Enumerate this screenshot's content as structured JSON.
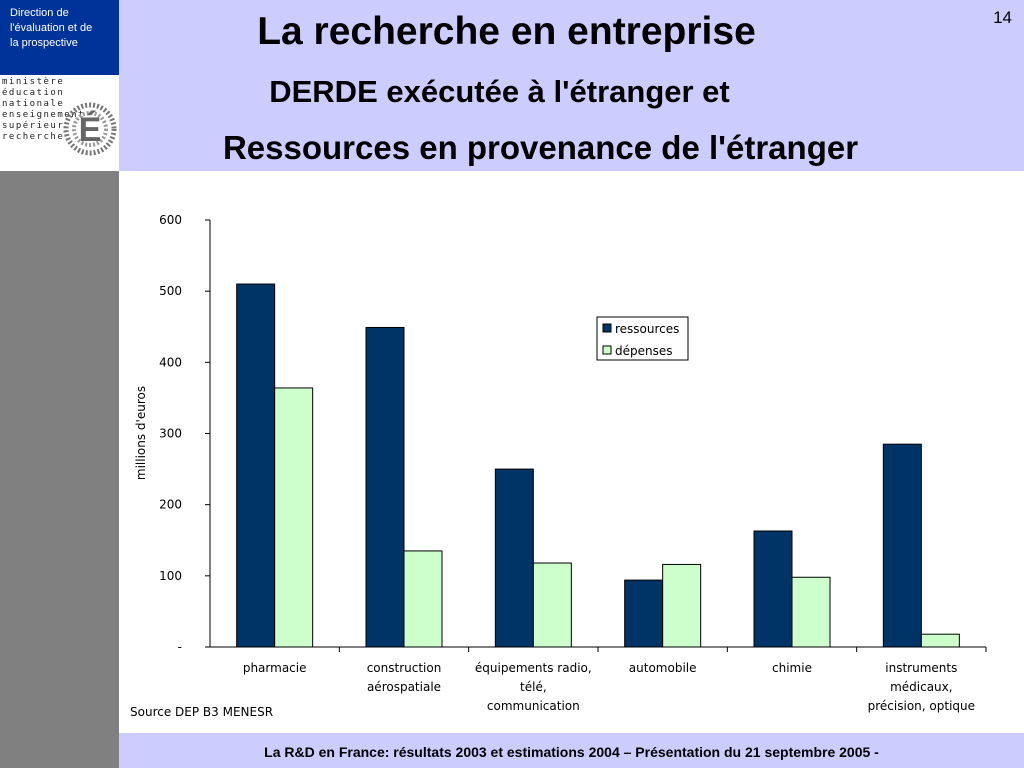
{
  "header": {
    "direction_lines": [
      "Direction de",
      "l'évaluation  et de",
      "la prospective"
    ],
    "logo_lines": [
      "ministère",
      "éducation",
      "nationale",
      "enseignement",
      "supérieur",
      "recherche"
    ],
    "logo_letter": "É",
    "page_number": "14",
    "title": "La recherche en entreprise",
    "subtitle_line1": "DERDE exécutée à l'étranger et",
    "subtitle_line2": "Ressources en provenance de l'étranger"
  },
  "footer": {
    "text": "La R&D en France: résultats 2003 et estimations 2004 – Présentation du 21 septembre 2005 -"
  },
  "source_note": "Source DEP B3 MENESR",
  "colors": {
    "header_bg": "#ccccff",
    "direction_bg": "#003399",
    "sidebar": "#808080",
    "ressources": "#003366",
    "depenses": "#ccffcc"
  },
  "chart_data": {
    "type": "bar",
    "categories": [
      [
        "pharmacie"
      ],
      [
        "construction",
        "aérospatiale"
      ],
      [
        "équipements radio,",
        "télé,",
        "communication"
      ],
      [
        "automobile"
      ],
      [
        "chimie"
      ],
      [
        "instruments",
        "médicaux,",
        "précision, optique"
      ]
    ],
    "series": [
      {
        "name": "ressources",
        "values": [
          510,
          449,
          250,
          94,
          163,
          285
        ],
        "color": "#003366"
      },
      {
        "name": "dépenses",
        "values": [
          364,
          135,
          118,
          116,
          98,
          18
        ],
        "color": "#ccffcc"
      }
    ],
    "ylabel": "millions d'euros",
    "ylim": [
      0,
      600
    ],
    "yticks": [
      0,
      100,
      200,
      300,
      400,
      500,
      600
    ],
    "ytick_labels": [
      "-",
      "100",
      "200",
      "300",
      "400",
      "500",
      "600"
    ],
    "grid": false,
    "legend_position": "upper-center-right"
  }
}
